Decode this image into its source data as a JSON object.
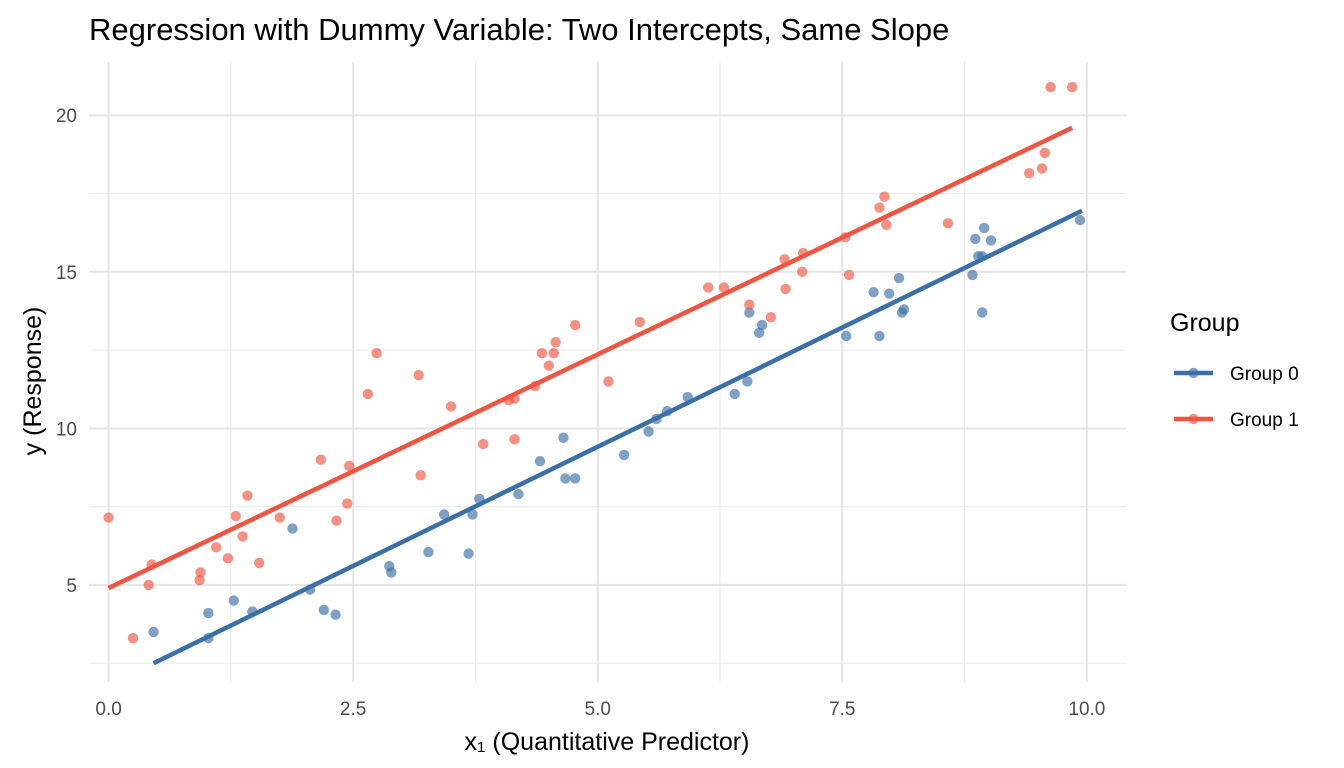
{
  "chart_data": {
    "type": "scatter",
    "title": "Regression with Dummy Variable: Two Intercepts, Same Slope",
    "xlabel": "x₁ (Quantitative Predictor)",
    "ylabel": "y (Response)",
    "xlim": [
      -0.2,
      10.4
    ],
    "ylim": [
      1.9,
      21.7
    ],
    "x_ticks": [
      0.0,
      2.5,
      5.0,
      7.5,
      10.0
    ],
    "x_tick_labels": [
      "0.0",
      "2.5",
      "5.0",
      "7.5",
      "10.0"
    ],
    "y_ticks": [
      5,
      10,
      15,
      20
    ],
    "y_tick_labels": [
      "5",
      "10",
      "15",
      "20"
    ],
    "grid": true,
    "legend": {
      "title": "Group",
      "position": "right"
    },
    "series": [
      {
        "name": "Group 0",
        "color": "#3b6fa8",
        "line": {
          "x": [
            0.46,
            9.95
          ],
          "y": [
            2.5,
            16.95
          ]
        },
        "points": [
          [
            0.46,
            3.5
          ],
          [
            1.02,
            4.1
          ],
          [
            1.02,
            3.3
          ],
          [
            1.28,
            4.5
          ],
          [
            1.47,
            4.15
          ],
          [
            1.88,
            6.8
          ],
          [
            2.06,
            4.85
          ],
          [
            2.2,
            4.2
          ],
          [
            2.32,
            4.05
          ],
          [
            2.87,
            5.6
          ],
          [
            2.89,
            5.4
          ],
          [
            3.27,
            6.05
          ],
          [
            3.43,
            7.25
          ],
          [
            3.68,
            6.0
          ],
          [
            3.72,
            7.25
          ],
          [
            3.79,
            7.75
          ],
          [
            4.19,
            7.9
          ],
          [
            4.41,
            8.95
          ],
          [
            4.65,
            9.7
          ],
          [
            4.67,
            8.4
          ],
          [
            4.77,
            8.4
          ],
          [
            5.27,
            9.15
          ],
          [
            5.52,
            9.9
          ],
          [
            5.6,
            10.3
          ],
          [
            5.71,
            10.55
          ],
          [
            5.92,
            11.0
          ],
          [
            6.4,
            11.1
          ],
          [
            6.53,
            11.5
          ],
          [
            6.55,
            13.7
          ],
          [
            6.65,
            13.05
          ],
          [
            6.68,
            13.3
          ],
          [
            7.54,
            12.95
          ],
          [
            7.82,
            14.35
          ],
          [
            7.88,
            12.95
          ],
          [
            7.98,
            14.3
          ],
          [
            8.08,
            14.8
          ],
          [
            8.11,
            13.7
          ],
          [
            8.13,
            13.8
          ],
          [
            8.83,
            14.9
          ],
          [
            8.86,
            16.05
          ],
          [
            8.89,
            15.5
          ],
          [
            8.93,
            15.5
          ],
          [
            8.93,
            13.7
          ],
          [
            8.95,
            16.4
          ],
          [
            9.02,
            16.0
          ],
          [
            9.93,
            16.65
          ]
        ]
      },
      {
        "name": "Group 1",
        "color": "#f15440",
        "line": {
          "x": [
            0.0,
            9.85
          ],
          "y": [
            4.9,
            19.6
          ]
        },
        "points": [
          [
            0.0,
            7.15
          ],
          [
            0.25,
            3.3
          ],
          [
            0.41,
            5.0
          ],
          [
            0.44,
            5.65
          ],
          [
            0.93,
            5.15
          ],
          [
            0.94,
            5.4
          ],
          [
            1.1,
            6.2
          ],
          [
            1.22,
            5.85
          ],
          [
            1.3,
            7.2
          ],
          [
            1.37,
            6.55
          ],
          [
            1.42,
            7.85
          ],
          [
            1.54,
            5.7
          ],
          [
            1.75,
            7.15
          ],
          [
            2.17,
            9.0
          ],
          [
            2.33,
            7.05
          ],
          [
            2.44,
            7.6
          ],
          [
            2.46,
            8.8
          ],
          [
            2.65,
            11.1
          ],
          [
            2.74,
            12.4
          ],
          [
            3.17,
            11.7
          ],
          [
            3.19,
            8.5
          ],
          [
            3.5,
            10.7
          ],
          [
            3.83,
            9.5
          ],
          [
            4.09,
            10.9
          ],
          [
            4.15,
            9.65
          ],
          [
            4.15,
            10.95
          ],
          [
            4.36,
            11.35
          ],
          [
            4.43,
            12.4
          ],
          [
            4.5,
            12.0
          ],
          [
            4.55,
            12.4
          ],
          [
            4.57,
            12.75
          ],
          [
            4.77,
            13.3
          ],
          [
            5.11,
            11.5
          ],
          [
            5.43,
            13.4
          ],
          [
            6.13,
            14.5
          ],
          [
            6.29,
            14.5
          ],
          [
            6.55,
            13.95
          ],
          [
            6.77,
            13.55
          ],
          [
            6.91,
            15.4
          ],
          [
            6.92,
            14.45
          ],
          [
            7.09,
            15.0
          ],
          [
            7.1,
            15.6
          ],
          [
            7.53,
            16.1
          ],
          [
            7.57,
            14.9
          ],
          [
            7.88,
            17.05
          ],
          [
            7.93,
            17.4
          ],
          [
            7.95,
            16.5
          ],
          [
            8.58,
            16.55
          ],
          [
            9.41,
            18.15
          ],
          [
            9.54,
            18.3
          ],
          [
            9.57,
            18.8
          ],
          [
            9.63,
            20.9
          ],
          [
            9.85,
            20.9
          ]
        ]
      }
    ]
  }
}
